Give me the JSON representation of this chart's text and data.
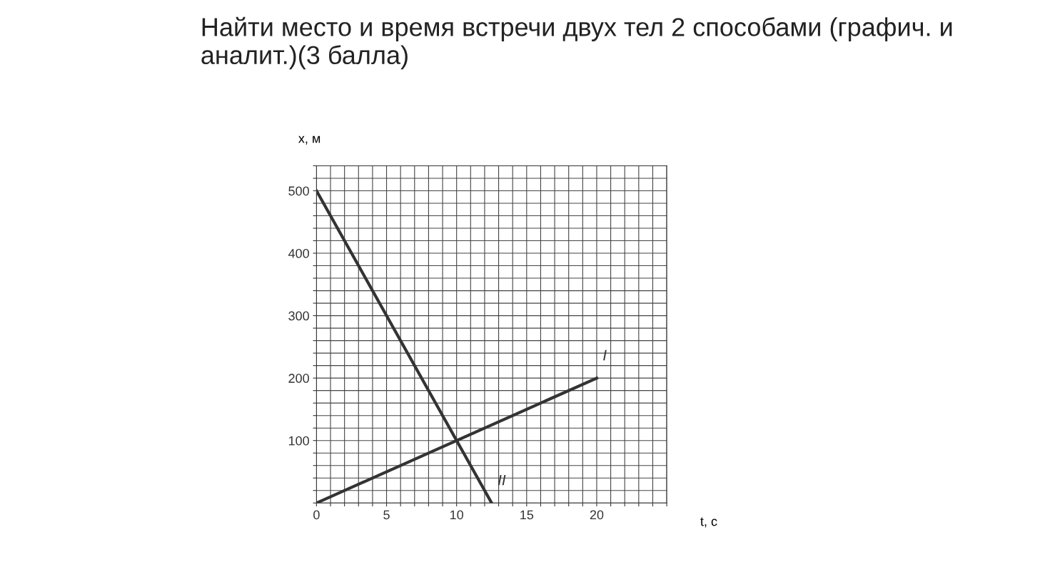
{
  "chart_data": {
    "type": "line",
    "title": "Найти место и время встречи двух тел 2 способами (графич. и аналит.)(3 балла)",
    "xlabel": "t, с",
    "ylabel": "x, м",
    "series": [
      {
        "name": "I",
        "color": "#333333",
        "x": [
          0,
          20
        ],
        "values": [
          0,
          200
        ]
      },
      {
        "name": "II",
        "color": "#333333",
        "x": [
          0,
          12.5
        ],
        "values": [
          500,
          0
        ]
      }
    ],
    "xlim": [
      0,
      25
    ],
    "ylim": [
      0,
      540
    ],
    "xticks": [
      0,
      {
        "value": 1,
        "label": null
      },
      {
        "value": 2,
        "label": null
      },
      {
        "value": 3,
        "label": null
      },
      {
        "value": 4,
        "label": null
      },
      5,
      {
        "value": 6,
        "label": null
      },
      {
        "value": 7,
        "label": null
      },
      {
        "value": 8,
        "label": null
      },
      {
        "value": 9,
        "label": null
      },
      10,
      {
        "value": 11,
        "label": null
      },
      {
        "value": 12,
        "label": null
      },
      {
        "value": 13,
        "label": null
      },
      {
        "value": 14,
        "label": null
      },
      15,
      {
        "value": 16,
        "label": null
      },
      {
        "value": 17,
        "label": null
      },
      {
        "value": 18,
        "label": null
      },
      {
        "value": 19,
        "label": null
      },
      20,
      {
        "value": 21,
        "label": null
      },
      {
        "value": 22,
        "label": null
      },
      {
        "value": 23,
        "label": null
      },
      {
        "value": 24,
        "label": null
      },
      {
        "value": 25,
        "label": null
      }
    ],
    "yticks": [
      {
        "value": 0,
        "label": null
      },
      {
        "value": 20,
        "label": null
      },
      {
        "value": 40,
        "label": null
      },
      {
        "value": 60,
        "label": null
      },
      {
        "value": 80,
        "label": null
      },
      100,
      {
        "value": 120,
        "label": null
      },
      {
        "value": 140,
        "label": null
      },
      {
        "value": 160,
        "label": null
      },
      {
        "value": 180,
        "label": null
      },
      200,
      {
        "value": 220,
        "label": null
      },
      {
        "value": 240,
        "label": null
      },
      {
        "value": 260,
        "label": null
      },
      {
        "value": 280,
        "label": null
      },
      300,
      {
        "value": 320,
        "label": null
      },
      {
        "value": 340,
        "label": null
      },
      {
        "value": 360,
        "label": null
      },
      {
        "value": 380,
        "label": null
      },
      400,
      {
        "value": 420,
        "label": null
      },
      {
        "value": 440,
        "label": null
      },
      {
        "value": 460,
        "label": null
      },
      {
        "value": 480,
        "label": null
      },
      500,
      {
        "value": 520,
        "label": null
      },
      {
        "value": 540,
        "label": null
      }
    ],
    "grid": true,
    "legend": false,
    "marker": "none",
    "line_style": "solid"
  }
}
